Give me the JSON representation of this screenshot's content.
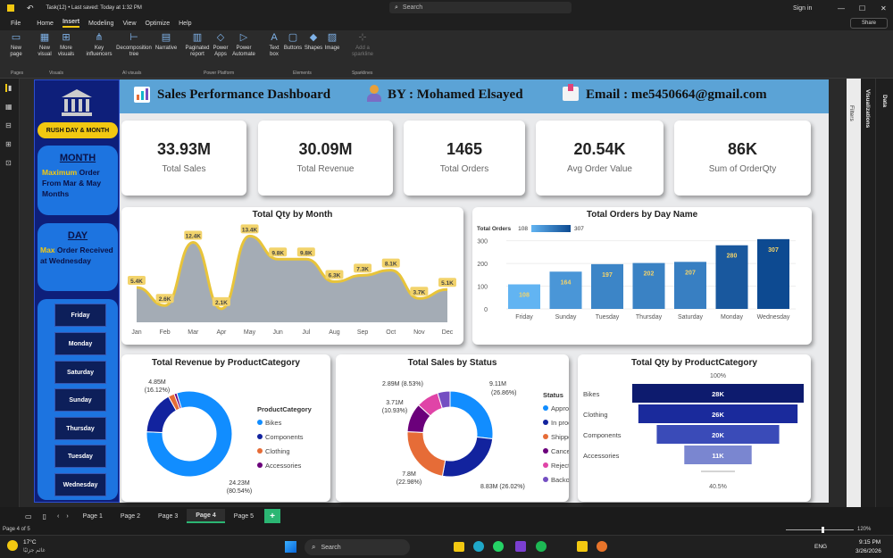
{
  "titlebar": {
    "title": "Task(12) • Last saved: Today at 1:32 PM",
    "search": "Search",
    "sign_in": "Sign in"
  },
  "menu": [
    "File",
    "Home",
    "Insert",
    "Modeling",
    "View",
    "Optimize",
    "Help"
  ],
  "share": "Share",
  "ribbon": {
    "buttons": [
      "New page",
      "New visual",
      "More visuals",
      "Key influencers",
      "Decomposition tree",
      "Narrative",
      "Paginated report",
      "Power Apps",
      "Power Automate",
      "Text box",
      "Buttons",
      "Shapes",
      "Image",
      "Add a sparkline"
    ],
    "groups": [
      "Pages",
      "Visuals",
      "AI visuals",
      "Power Platform",
      "Elements",
      "Sparklines"
    ]
  },
  "header": {
    "title": "Sales Performance Dashboard",
    "author": "BY : Mohamed Elsayed",
    "email": "Email : me5450664@gmail.com"
  },
  "sidebar": {
    "rush": "RUSH DAY & MONTH",
    "month_title": "MONTH",
    "month_hl": "Maximum",
    "month_text": " Order From Mar & May Months",
    "day_title": "DAY",
    "day_hl": "Max",
    "day_text": " Order Received at Wednesday",
    "days": [
      "Friday",
      "Monday",
      "Saturday",
      "Sunday",
      "Thursday",
      "Tuesday",
      "Wednesday"
    ]
  },
  "kpis": [
    {
      "value": "33.93M",
      "label": "Total Sales"
    },
    {
      "value": "30.09M",
      "label": "Total Revenue"
    },
    {
      "value": "1465",
      "label": "Total Orders"
    },
    {
      "value": "20.54K",
      "label": "Avg Order Value"
    },
    {
      "value": "86K",
      "label": "Sum of OrderQty"
    }
  ],
  "chart_data": [
    {
      "type": "area",
      "title": "Total Qty by Month",
      "categories": [
        "Jan",
        "Feb",
        "Mar",
        "Apr",
        "May",
        "Jun",
        "Jul",
        "Aug",
        "Sep",
        "Oct",
        "Nov",
        "Dec"
      ],
      "values": [
        5.4,
        2.6,
        12.4,
        2.1,
        13.4,
        9.8,
        9.8,
        6.3,
        7.3,
        8.1,
        3.7,
        5.1
      ],
      "labels": [
        "5.4K",
        "2.6K",
        "12.4K",
        "2.1K",
        "13.4K",
        "9.8K",
        "9.8K",
        "6.3K",
        "7.3K",
        "8.1K",
        "3.7K",
        "5.1K"
      ],
      "color": "#e8c43a",
      "fill": "#9aa3ad"
    },
    {
      "type": "bar",
      "title": "Total Orders by Day Name",
      "legend": "Total Orders",
      "legend_min": "108",
      "legend_max": "307",
      "categories": [
        "Friday",
        "Sunday",
        "Tuesday",
        "Thursday",
        "Saturday",
        "Monday",
        "Wednesday"
      ],
      "values": [
        108,
        164,
        197,
        202,
        207,
        280,
        307
      ],
      "yticks": [
        "300",
        "200",
        "100",
        "0"
      ],
      "ylim": [
        0,
        330
      ]
    },
    {
      "type": "pie",
      "title": "Total Revenue by ProductCategory",
      "legend_title": "ProductCategory",
      "series": [
        {
          "name": "Bikes",
          "value": 24.23,
          "color": "#118dff"
        },
        {
          "name": "Components",
          "value": 4.85,
          "color": "#12239e"
        },
        {
          "name": "Clothing",
          "value": 0.7,
          "color": "#e66c37"
        },
        {
          "name": "Accessories",
          "value": 0.3,
          "color": "#6b007b"
        }
      ],
      "labels": [
        "4.85M",
        "(16.12%)",
        "24.23M",
        "(80.54%)"
      ]
    },
    {
      "type": "pie",
      "title": "Total Sales by Status",
      "legend_title": "Status",
      "series": [
        {
          "name": "Approved",
          "value": 9.11,
          "color": "#118dff"
        },
        {
          "name": "In process",
          "value": 8.83,
          "color": "#12239e"
        },
        {
          "name": "Shipped",
          "value": 7.8,
          "color": "#e66c37"
        },
        {
          "name": "Cancelled",
          "value": 3.71,
          "color": "#6b007b"
        },
        {
          "name": "Rejected",
          "value": 2.89,
          "color": "#e044a7"
        },
        {
          "name": "Backordered",
          "value": 1.6,
          "color": "#744ec2"
        }
      ],
      "labels": [
        "9.11M",
        "(26.86%)",
        "8.83M (26.02%)",
        "7.8M",
        "(22.98%)",
        "3.71M",
        "(10.93%)",
        "2.89M (8.53%)"
      ]
    },
    {
      "type": "funnel",
      "title": "Total Qty by ProductCategory",
      "categories": [
        "Bikes",
        "Clothing",
        "Components",
        "Accessories"
      ],
      "values": [
        28,
        26,
        20,
        11
      ],
      "labels": [
        "28K",
        "26K",
        "20K",
        "11K"
      ],
      "top": "100%",
      "bottom": "40.5%",
      "colors": [
        "#0d1b6e",
        "#1a2a9c",
        "#3a4bb8",
        "#7a86d0"
      ]
    }
  ],
  "pages": [
    "Page 1",
    "Page 2",
    "Page 3",
    "Page 4",
    "Page 5"
  ],
  "status": {
    "page": "Page 4 of 5",
    "zoom": "120%"
  },
  "rightpanes": {
    "filters": "Filters",
    "visualizations": "Visualizations",
    "data": "Data"
  },
  "taskbar": {
    "temp": "17°C",
    "weather": "غائم جزئيًا",
    "search": "Search",
    "lang": "ENG",
    "time": "9:15 PM",
    "date": "3/26/2026"
  }
}
